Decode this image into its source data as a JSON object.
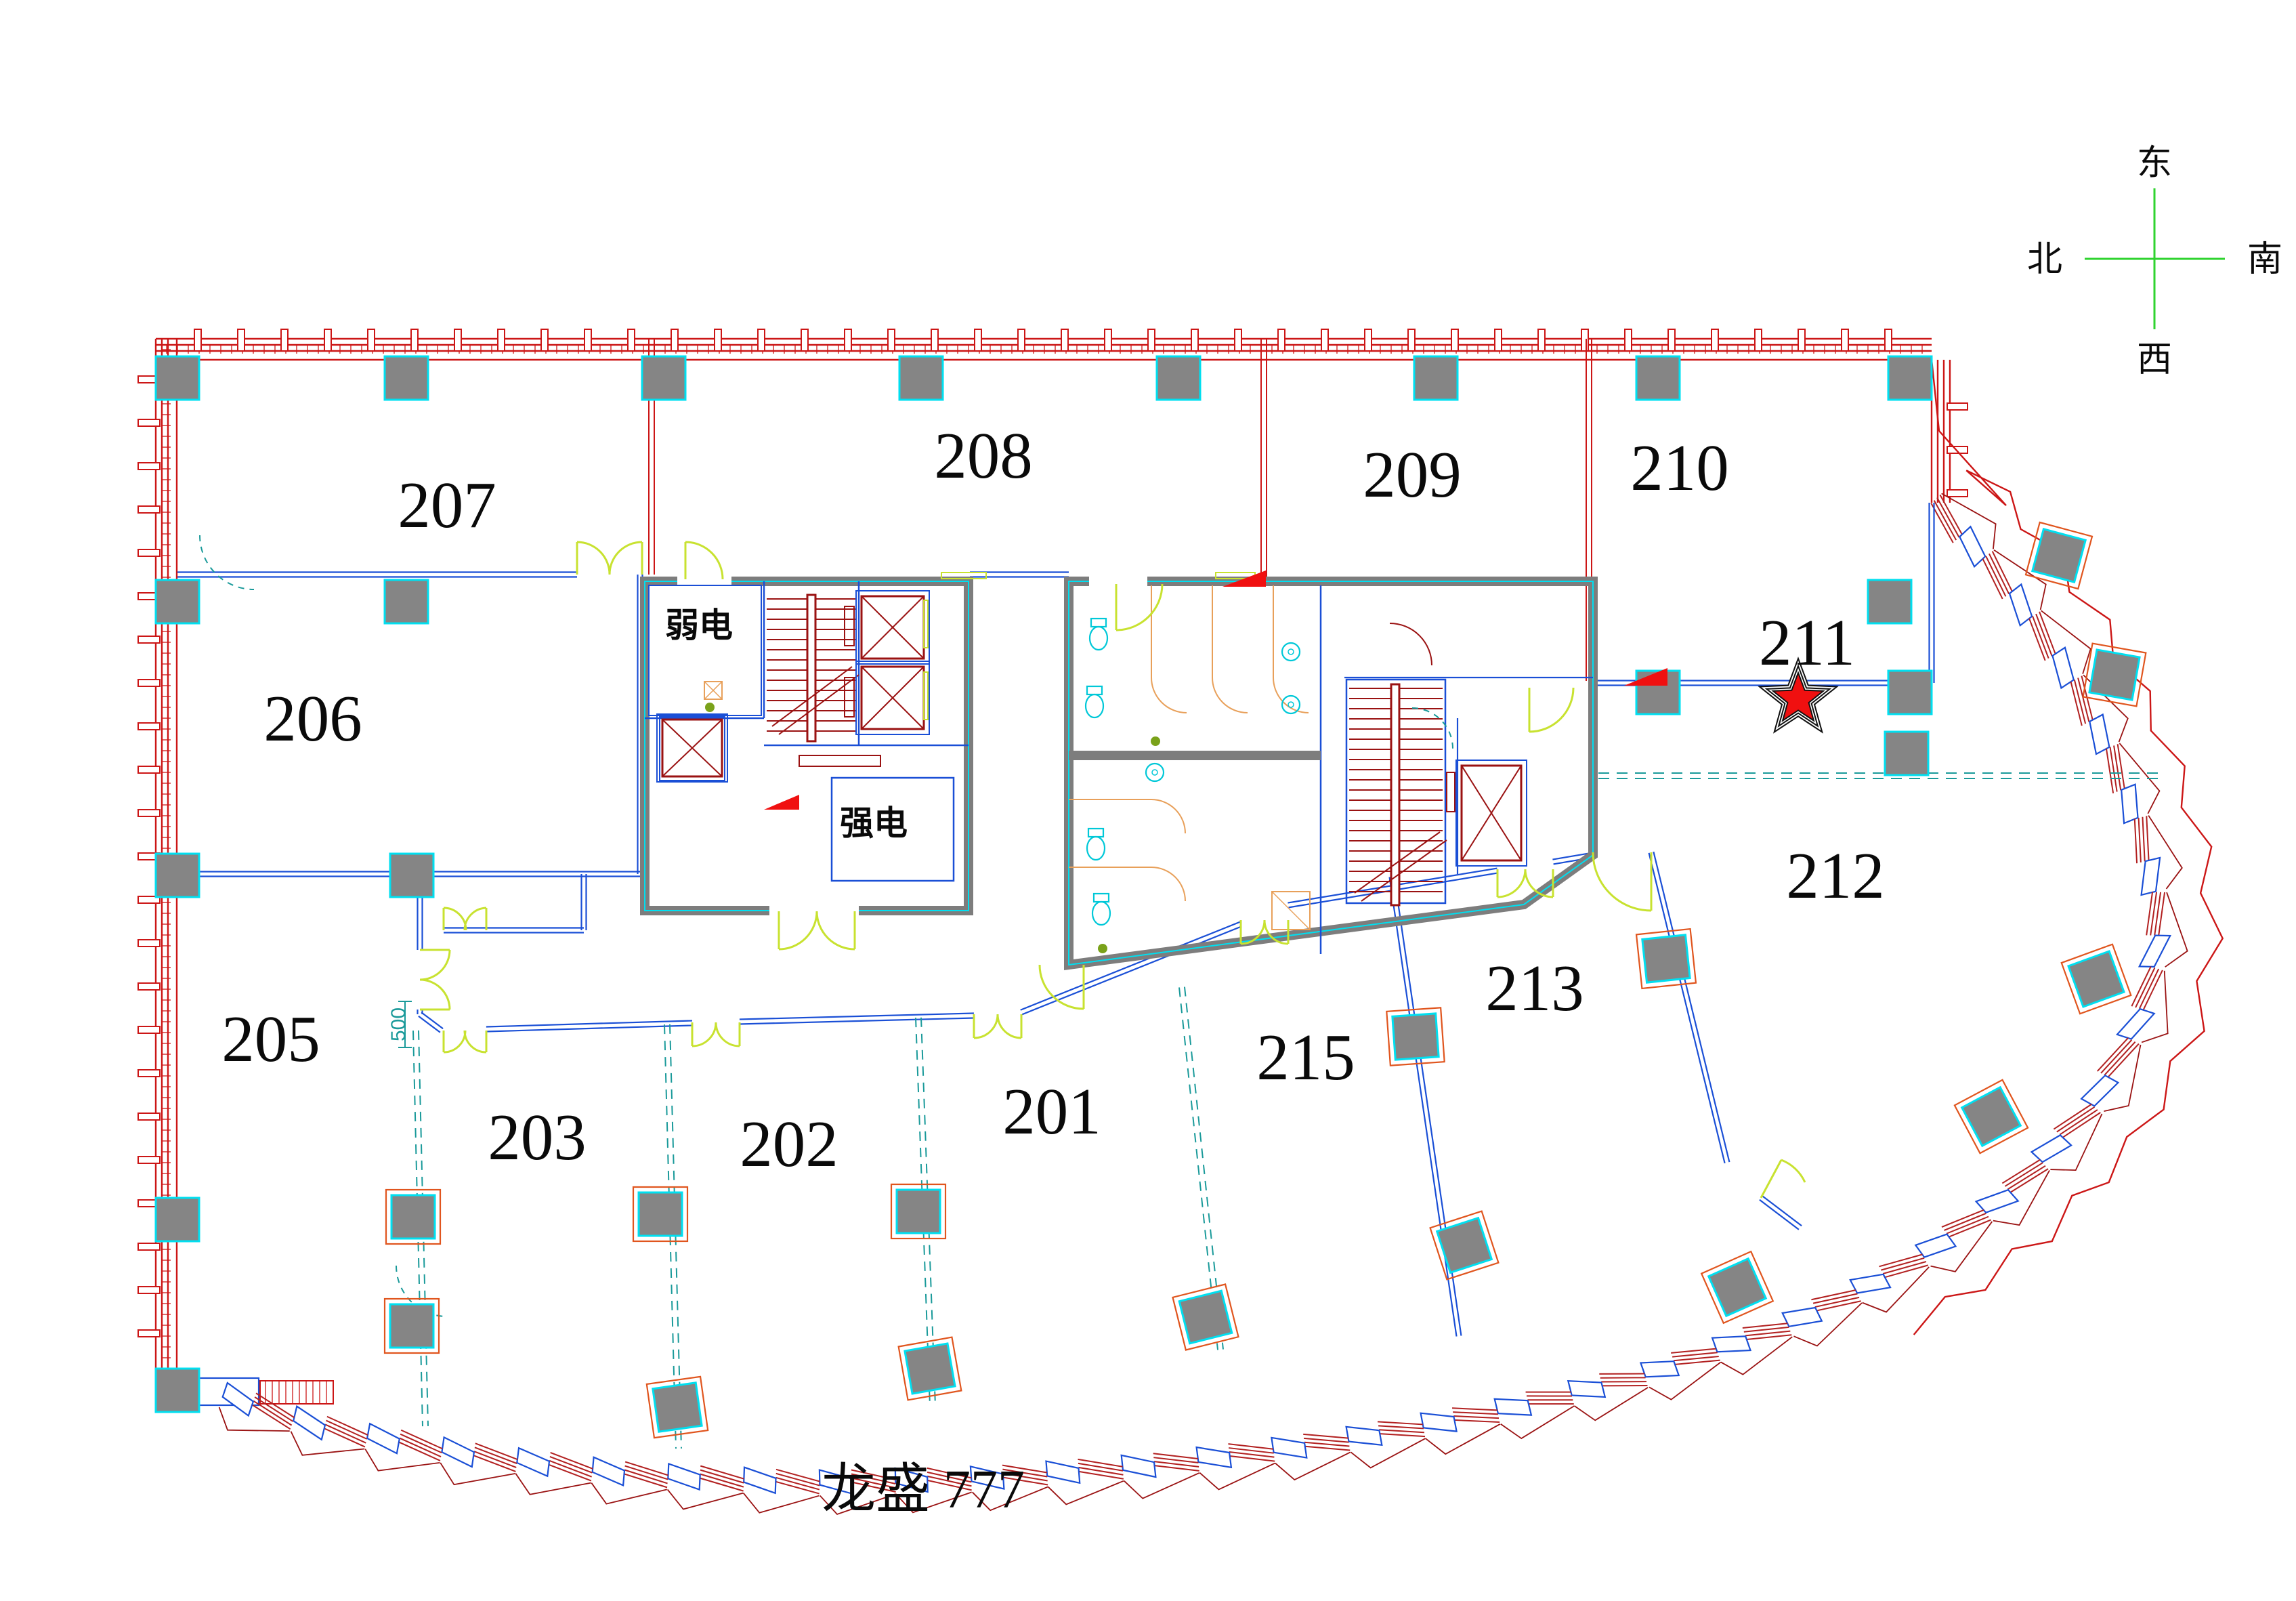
{
  "title": {
    "project": "龙盛  777"
  },
  "compass": {
    "east": "东",
    "south": "南",
    "west": "西",
    "north": "北"
  },
  "rooms": {
    "r201": "201",
    "r202": "202",
    "r203": "203",
    "r205": "205",
    "r206": "206",
    "r207": "207",
    "r208": "208",
    "r209": "209",
    "r210": "210",
    "r211": "211",
    "r212": "212",
    "r213": "213",
    "r215": "215"
  },
  "utility_rooms": {
    "weak_power": "弱电",
    "strong_power": "强电"
  },
  "dimensions": {
    "corridor_width": "500"
  },
  "highlight": {
    "starred_room": "211"
  },
  "colors": {
    "wall_red": "#cc1616",
    "outline_red": "#b22020",
    "stair_dark_red": "#9a1212",
    "partition_blue": "#1a4fd6",
    "dashed_teal": "#1a9a9a",
    "door_yellow_green": "#c8e230",
    "core_gray": "#7d7d7d",
    "column_gray": "#858585",
    "column_edge_cyan": "#00dff0",
    "column_frame_orange": "#e0551e",
    "fixture_cyan": "#00c8d8",
    "stall_orange": "#e8a05a",
    "star_red": "#f01010",
    "compass_green": "#2fd32f",
    "marker_magenta": "#cc22cc"
  }
}
